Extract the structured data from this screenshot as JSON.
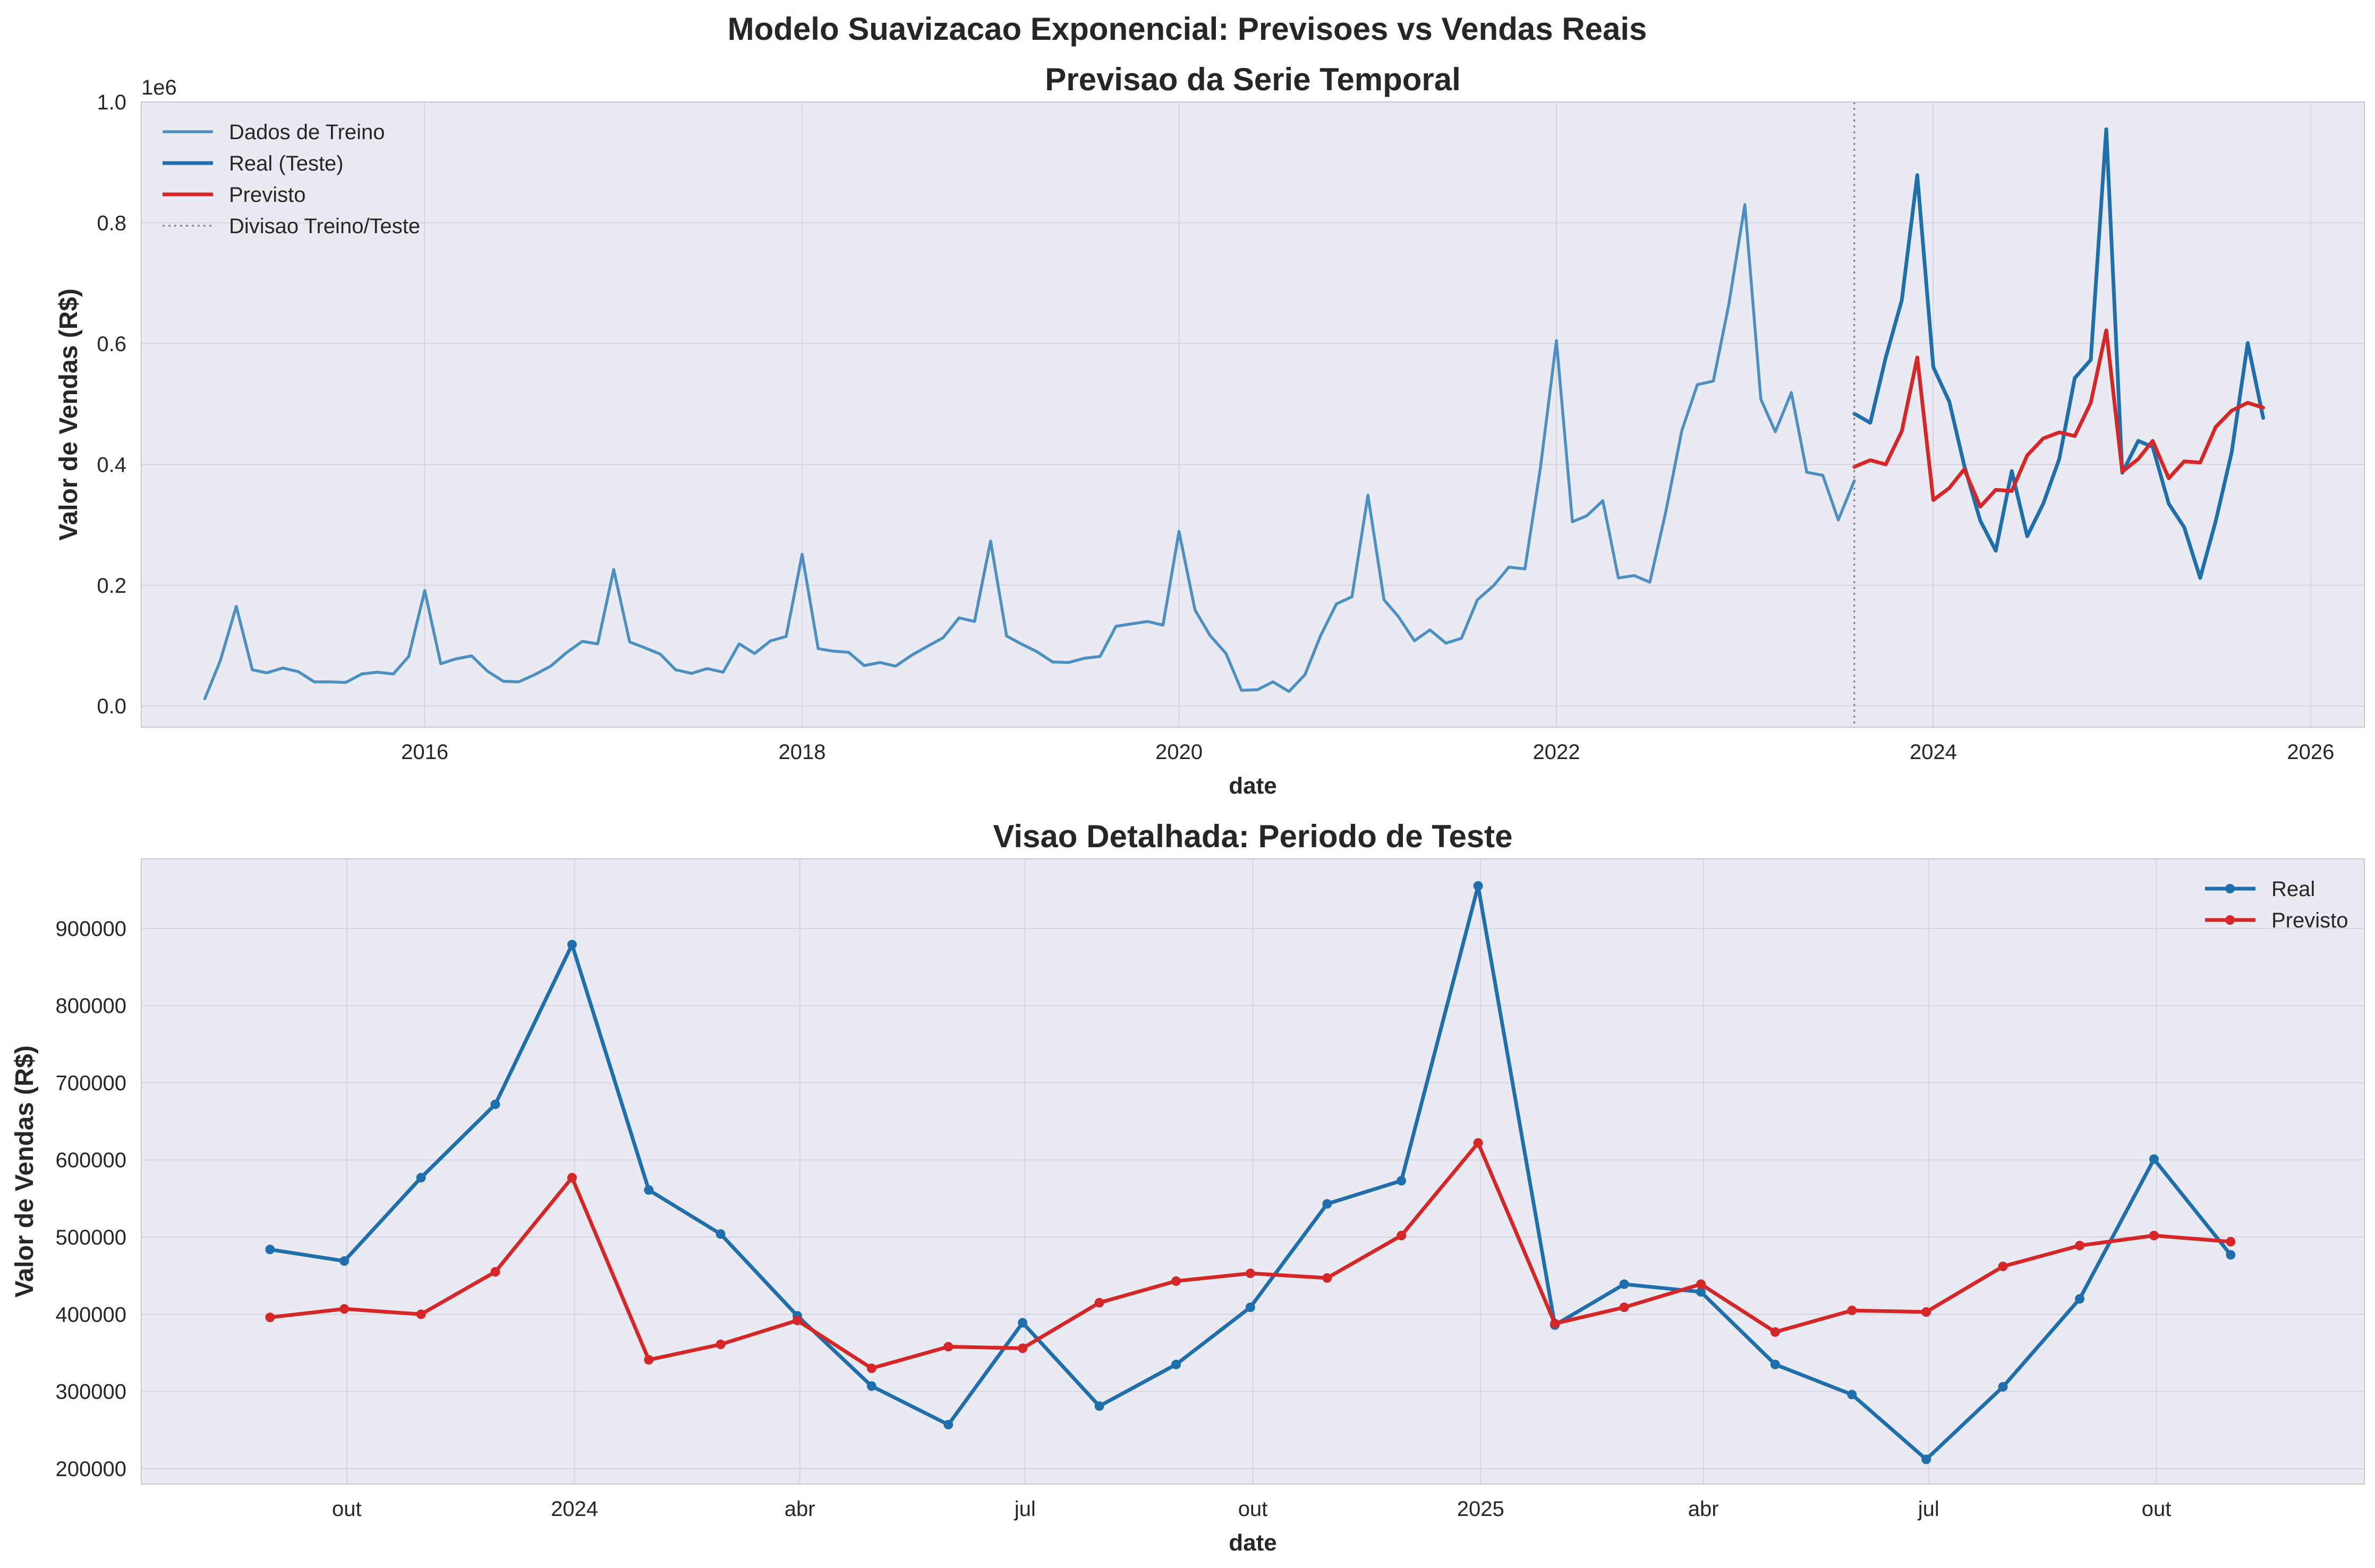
{
  "figure": {
    "suptitle": "Modelo Suavizacao Exponencial: Previsoes vs Vendas Reais"
  },
  "colors": {
    "train": "#4c8fc2",
    "real": "#1f6fad",
    "forecast": "#d62728",
    "split_line": "#808080",
    "plot_bg": "#eaeaf2",
    "grid": "#d4d4dc"
  },
  "chart_data": [
    {
      "type": "line",
      "title": "Previsao da Serie Temporal",
      "xlabel": "date",
      "ylabel": "Valor de Vendas (R$)",
      "y_offset_label": "1e6",
      "xlim": [
        "2014-07-01",
        "2026-04-15"
      ],
      "ylim": [
        -35000,
        1000000
      ],
      "grid": true,
      "legend_position": "top-left",
      "x_ticks": [
        {
          "date": "2016-01-01",
          "label": "2016"
        },
        {
          "date": "2018-01-01",
          "label": "2018"
        },
        {
          "date": "2020-01-01",
          "label": "2020"
        },
        {
          "date": "2022-01-01",
          "label": "2022"
        },
        {
          "date": "2024-01-01",
          "label": "2024"
        },
        {
          "date": "2026-01-01",
          "label": "2026"
        }
      ],
      "y_ticks": [
        {
          "value": 0,
          "label": "0.0"
        },
        {
          "value": 200000,
          "label": "0.2"
        },
        {
          "value": 400000,
          "label": "0.4"
        },
        {
          "value": 600000,
          "label": "0.6"
        },
        {
          "value": 800000,
          "label": "0.8"
        },
        {
          "value": 1000000,
          "label": "1.0"
        }
      ],
      "train_start": "2014-11-01",
      "split_date": "2023-08-01",
      "series": [
        {
          "name": "Dados de Treino",
          "style": "train",
          "values": [
            12000,
            75000,
            165000,
            60000,
            55000,
            63000,
            57000,
            40000,
            40000,
            39000,
            53000,
            56000,
            53000,
            82000,
            191000,
            70000,
            78000,
            83000,
            58000,
            41000,
            40000,
            52000,
            66000,
            88000,
            107000,
            103000,
            226000,
            106000,
            97000,
            86000,
            60000,
            54000,
            62000,
            56000,
            103000,
            87000,
            108000,
            115000,
            251000,
            95000,
            91000,
            89000,
            67000,
            72000,
            66000,
            84000,
            99000,
            113000,
            146000,
            140000,
            273000,
            116000,
            103000,
            90000,
            73000,
            72000,
            79000,
            82000,
            132000,
            136000,
            140000,
            134000,
            289000,
            159000,
            117000,
            87000,
            26000,
            27000,
            40000,
            24000,
            52000,
            116000,
            169000,
            181000,
            349000,
            176000,
            148000,
            108000,
            126000,
            104000,
            112000,
            176000,
            199000,
            230000,
            227000,
            394000,
            605000,
            305000,
            315000,
            340000,
            212000,
            216000,
            205000,
            322000,
            456000,
            532000,
            538000,
            665000,
            830000,
            508000,
            454000,
            519000,
            387000,
            382000,
            308000,
            373000
          ]
        },
        {
          "name": "Real (Teste)",
          "style": "real",
          "values": [
            484000,
            469000,
            577000,
            672000,
            879000,
            561000,
            504000,
            398000,
            307000,
            257000,
            389000,
            281000,
            335000,
            409000,
            543000,
            573000,
            955000,
            386000,
            439000,
            429000,
            335000,
            296000,
            212000,
            306000,
            420000,
            601000,
            477000
          ]
        },
        {
          "name": "Previsto",
          "style": "forecast",
          "values": [
            396000,
            407000,
            400000,
            455000,
            577000,
            341000,
            361000,
            392000,
            330000,
            358000,
            356000,
            415000,
            443000,
            453000,
            447000,
            502000,
            622000,
            388000,
            409000,
            439000,
            377000,
            405000,
            403000,
            462000,
            489000,
            502000,
            494000
          ]
        },
        {
          "name": "Divisao Treino/Teste",
          "style": "split"
        }
      ]
    },
    {
      "type": "line",
      "title": "Visao Detalhada: Periodo de Teste",
      "xlabel": "date",
      "ylabel": "Valor de Vendas (R$)",
      "xlim": [
        "2023-07-10",
        "2025-12-24"
      ],
      "ylim": [
        180000,
        990000
      ],
      "grid": true,
      "legend_position": "top-right",
      "x": [
        "2023-08-31",
        "2023-09-30",
        "2023-10-31",
        "2023-11-30",
        "2023-12-31",
        "2024-01-31",
        "2024-02-29",
        "2024-03-31",
        "2024-04-30",
        "2024-05-31",
        "2024-06-30",
        "2024-07-31",
        "2024-08-31",
        "2024-09-30",
        "2024-10-31",
        "2024-11-30",
        "2024-12-31",
        "2025-01-31",
        "2025-02-28",
        "2025-03-31",
        "2025-04-30",
        "2025-05-31",
        "2025-06-30",
        "2025-07-31",
        "2025-08-31",
        "2025-09-30",
        "2025-10-31"
      ],
      "x_ticks": [
        {
          "date": "2023-10-01",
          "label": "out"
        },
        {
          "date": "2024-01-01",
          "label": "2024"
        },
        {
          "date": "2024-04-01",
          "label": "abr"
        },
        {
          "date": "2024-07-01",
          "label": "jul"
        },
        {
          "date": "2024-10-01",
          "label": "out"
        },
        {
          "date": "2025-01-01",
          "label": "2025"
        },
        {
          "date": "2025-04-01",
          "label": "abr"
        },
        {
          "date": "2025-07-01",
          "label": "jul"
        },
        {
          "date": "2025-10-01",
          "label": "out"
        }
      ],
      "y_ticks": [
        {
          "value": 200000,
          "label": "200000"
        },
        {
          "value": 300000,
          "label": "300000"
        },
        {
          "value": 400000,
          "label": "400000"
        },
        {
          "value": 500000,
          "label": "500000"
        },
        {
          "value": 600000,
          "label": "600000"
        },
        {
          "value": 700000,
          "label": "700000"
        },
        {
          "value": 800000,
          "label": "800000"
        },
        {
          "value": 900000,
          "label": "900000"
        }
      ],
      "series": [
        {
          "name": "Real",
          "style": "real",
          "values": [
            484000,
            469000,
            577000,
            672000,
            879000,
            561000,
            504000,
            398000,
            307000,
            257000,
            389000,
            281000,
            335000,
            409000,
            543000,
            573000,
            955000,
            386000,
            439000,
            429000,
            335000,
            296000,
            212000,
            306000,
            420000,
            601000,
            477000
          ]
        },
        {
          "name": "Previsto",
          "style": "forecast",
          "values": [
            396000,
            407000,
            400000,
            455000,
            577000,
            341000,
            361000,
            392000,
            330000,
            358000,
            356000,
            415000,
            443000,
            453000,
            447000,
            502000,
            622000,
            388000,
            409000,
            439000,
            377000,
            405000,
            403000,
            462000,
            489000,
            502000,
            494000
          ]
        }
      ]
    }
  ]
}
